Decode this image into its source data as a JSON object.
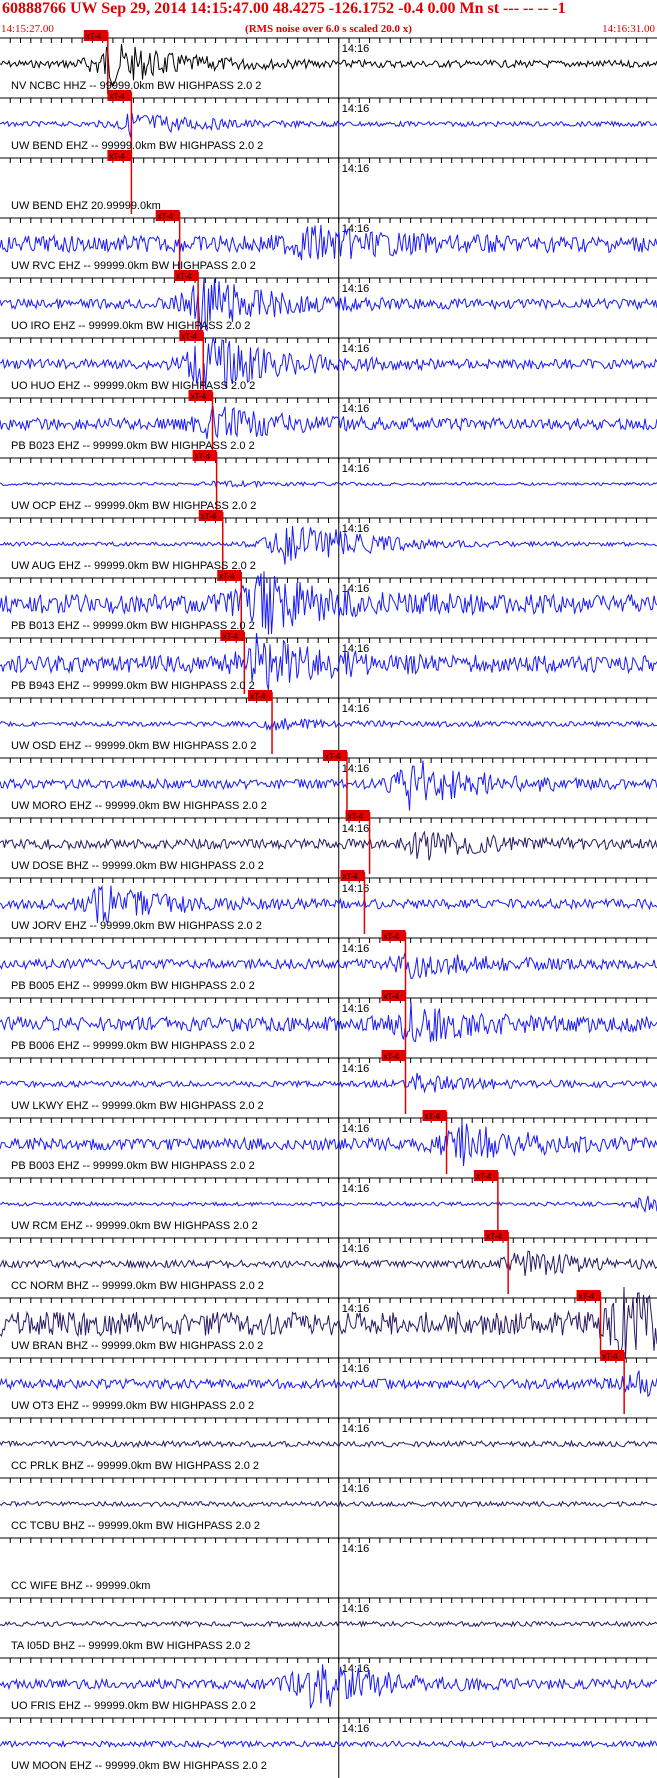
{
  "header": {
    "title": "60888766 UW Sep 29, 2014 14:15:47.00   48.4275 -126.1752 -0.4 0.00 Mn st --- -- --   -1",
    "start_time": "14:15:27.00",
    "end_time": "14:16:31.00",
    "noise_note": "(RMS noise over 6.0 s scaled 20.0 x)"
  },
  "colors": {
    "trace_blue": "#1a1aff",
    "trace_dark": "#2a1a66",
    "trace_black": "#000000",
    "pick_red": "#e00000",
    "grid": "#000000"
  },
  "chart_data": {
    "type": "line",
    "title": "60888766 UW Sep 29, 2014 14:15:47.00   48.4275 -126.1752 -0.4 0.00 Mn st --- -- --   -1",
    "x_start_sec": 0,
    "x_end_sec": 64,
    "minute_mark_sec": 33,
    "minute_label": "14:16",
    "pick_label": "xT-4",
    "channels": [
      {
        "label": "NV NCBC HHZ -- 99999.0km BW  HIGHPASS  2.0  2",
        "pick_sec": 10.5,
        "color": "black",
        "amp": 0.15,
        "burst_sec": 10.5,
        "burst_amp": 0.9
      },
      {
        "label": "UW BEND EHZ -- 99999.0km BW  HIGHPASS  2.0  2",
        "pick_sec": 12.8,
        "color": "blue",
        "amp": 0.1,
        "burst_sec": 12.8,
        "burst_amp": 0.5
      },
      {
        "label": "UW BEND EHZ 20.99999.0km",
        "pick_sec": 12.8,
        "color": "blue",
        "amp": 0,
        "burst_sec": 12.8,
        "burst_amp": 0
      },
      {
        "label": "UW RVC EHZ -- 99999.0km BW  HIGHPASS  2.0  2",
        "pick_sec": 17.5,
        "color": "blue",
        "amp": 0.35,
        "burst_sec": 30,
        "burst_amp": 0.6
      },
      {
        "label": "UO IRO EHZ -- 99999.0km BW  HIGHPASS  2.0  2",
        "pick_sec": 19.3,
        "color": "blue",
        "amp": 0.2,
        "burst_sec": 19.3,
        "burst_amp": 1.2
      },
      {
        "label": "UO HUO EHZ -- 99999.0km BW  HIGHPASS  2.0  2",
        "pick_sec": 19.8,
        "color": "blue",
        "amp": 0.2,
        "burst_sec": 19.8,
        "burst_amp": 1.2
      },
      {
        "label": "PB B023 EHZ -- 99999.0km BW  HIGHPASS  2.0  2",
        "pick_sec": 20.7,
        "color": "blue",
        "amp": 0.25,
        "burst_sec": 20.7,
        "burst_amp": 0.6
      },
      {
        "label": "UW OCP EHZ -- 99999.0km BW  HIGHPASS  2.0  2",
        "pick_sec": 21.1,
        "color": "blue",
        "amp": 0.06,
        "burst_sec": 21.1,
        "burst_amp": 0.1
      },
      {
        "label": "UW AUG EHZ -- 99999.0km BW  HIGHPASS  2.0  2",
        "pick_sec": 21.7,
        "color": "blue",
        "amp": 0.08,
        "burst_sec": 28,
        "burst_amp": 1.2
      },
      {
        "label": "PB B013 EHZ -- 99999.0km BW  HIGHPASS  2.0  2",
        "pick_sec": 23.5,
        "color": "blue",
        "amp": 0.4,
        "burst_sec": 25,
        "burst_amp": 1.1
      },
      {
        "label": "PB B943 EHZ -- 99999.0km BW  HIGHPASS  2.0  2",
        "pick_sec": 23.8,
        "color": "blue",
        "amp": 0.35,
        "burst_sec": 25,
        "burst_amp": 1.0
      },
      {
        "label": "UW OSD EHZ -- 99999.0km BW  HIGHPASS  2.0  2",
        "pick_sec": 26.5,
        "color": "blue",
        "amp": 0.1,
        "burst_sec": 26.5,
        "burst_amp": 0.2
      },
      {
        "label": "UW MORO EHZ -- 99999.0km BW  HIGHPASS  2.0  2",
        "pick_sec": 33.8,
        "color": "blue",
        "amp": 0.2,
        "burst_sec": 40,
        "burst_amp": 1.0
      },
      {
        "label": "UW DOSE BHZ -- 99999.0km BW  HIGHPASS  2.0  2",
        "pick_sec": 36,
        "color": "dark",
        "amp": 0.2,
        "burst_sec": 41,
        "burst_amp": 0.6
      },
      {
        "label": "UW JORV EHZ -- 99999.0km BW  HIGHPASS  2.0  2",
        "pick_sec": 35.5,
        "color": "blue",
        "amp": 0.2,
        "burst_sec": 9.5,
        "burst_amp": 0.7
      },
      {
        "label": "PB B005 EHZ -- 99999.0km BW  HIGHPASS  2.0  2",
        "pick_sec": 39.5,
        "color": "blue",
        "amp": 0.2,
        "burst_sec": 39.5,
        "burst_amp": 0.5
      },
      {
        "label": "PB B006 EHZ -- 99999.0km BW  HIGHPASS  2.0  2",
        "pick_sec": 39.5,
        "color": "blue",
        "amp": 0.3,
        "burst_sec": 40,
        "burst_amp": 0.7
      },
      {
        "label": "UW LKWY EHZ -- 99999.0km BW  HIGHPASS  2.0  2",
        "pick_sec": 39.5,
        "color": "blue",
        "amp": 0.12,
        "burst_sec": 40.5,
        "burst_amp": 0.35
      },
      {
        "label": "PB B003 EHZ -- 99999.0km BW  HIGHPASS  2.0  2",
        "pick_sec": 43.5,
        "color": "blue",
        "amp": 0.25,
        "burst_sec": 44.5,
        "burst_amp": 0.8
      },
      {
        "label": "UW RCM EHZ -- 99999.0km BW  HIGHPASS  2.0  2",
        "pick_sec": 48.5,
        "color": "blue",
        "amp": 0.08,
        "burst_sec": 63,
        "burst_amp": 0.4
      },
      {
        "label": "CC NORM BHZ -- 99999.0km BW  HIGHPASS  2.0  2",
        "pick_sec": 49.5,
        "color": "dark",
        "amp": 0.15,
        "burst_sec": 50.5,
        "burst_amp": 0.5
      },
      {
        "label": "UW BRAN BHZ -- 99999.0km BW  HIGHPASS  2.0  2",
        "pick_sec": 58.5,
        "color": "dark",
        "amp": 0.5,
        "burst_sec": 60.5,
        "burst_amp": 1.1
      },
      {
        "label": "UW OT3 EHZ -- 99999.0km BW  HIGHPASS  2.0  2",
        "pick_sec": 60.8,
        "color": "blue",
        "amp": 0.2,
        "burst_sec": 62,
        "burst_amp": 0.4
      },
      {
        "label": "CC PRLK BHZ -- 99999.0km BW  HIGHPASS  2.0  2",
        "pick_sec": null,
        "color": "dark",
        "amp": 0.12,
        "burst_sec": 0,
        "burst_amp": 0
      },
      {
        "label": "CC TCBU BHZ -- 99999.0km BW  HIGHPASS  2.0  2",
        "pick_sec": null,
        "color": "dark",
        "amp": 0.1,
        "burst_sec": 0,
        "burst_amp": 0
      },
      {
        "label": "CC WIFE BHZ -- 99999.0km",
        "pick_sec": null,
        "color": "dark",
        "amp": 0,
        "burst_sec": 0,
        "burst_amp": 0
      },
      {
        "label": "TA I05D BHZ -- 99999.0km BW  HIGHPASS  2.0  2",
        "pick_sec": null,
        "color": "dark",
        "amp": 0.1,
        "burst_sec": 0,
        "burst_amp": 0
      },
      {
        "label": "UO FRIS EHZ -- 99999.0km BW  HIGHPASS  2.0  2",
        "pick_sec": null,
        "color": "blue",
        "amp": 0.2,
        "burst_sec": 30,
        "burst_amp": 1.1
      },
      {
        "label": "UW MOON EHZ -- 99999.0km BW  HIGHPASS  2.0  2",
        "pick_sec": null,
        "color": "blue",
        "amp": 0.12,
        "burst_sec": 0,
        "burst_amp": 0
      }
    ]
  }
}
